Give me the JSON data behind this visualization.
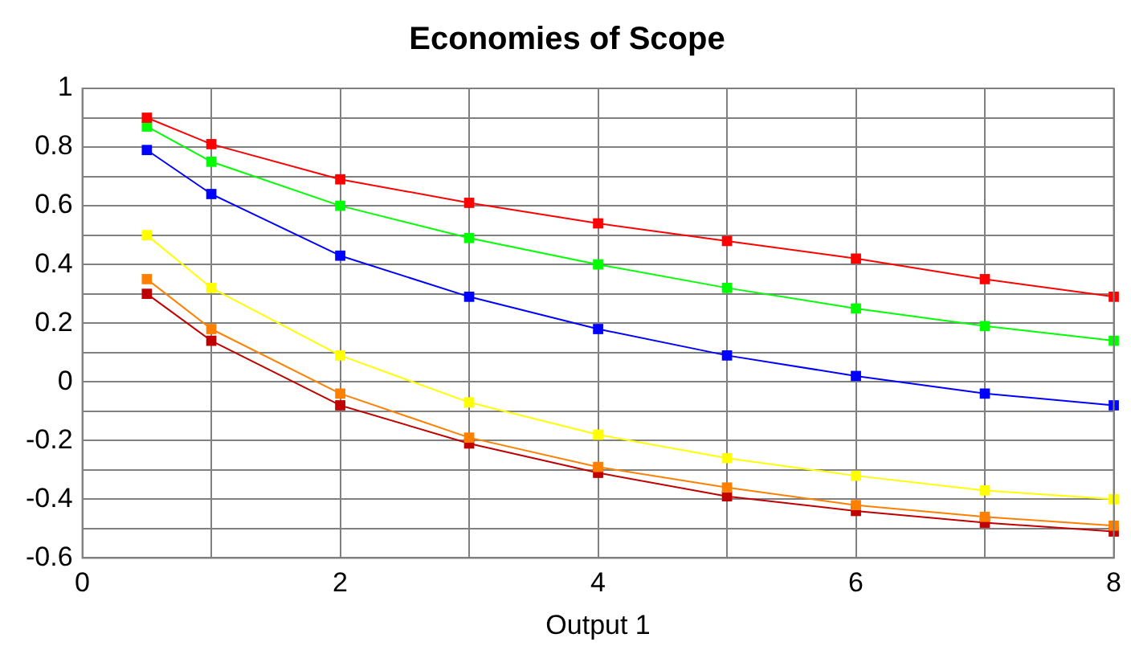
{
  "chart_data": {
    "type": "line",
    "title": "Economies of Scope",
    "xlabel": "Output 1",
    "x": [
      0.5,
      1,
      2,
      3,
      4,
      5,
      6,
      7,
      8
    ],
    "series": [
      {
        "color": "#ff0000",
        "values": [
          0.9,
          0.81,
          0.69,
          0.61,
          0.54,
          0.48,
          0.42,
          0.35,
          0.29
        ]
      },
      {
        "color": "#00ff00",
        "values": [
          0.87,
          0.75,
          0.6,
          0.49,
          0.4,
          0.32,
          0.25,
          0.19,
          0.14
        ]
      },
      {
        "color": "#0000ff",
        "values": [
          0.79,
          0.64,
          0.43,
          0.29,
          0.18,
          0.09,
          0.02,
          -0.04,
          -0.08
        ]
      },
      {
        "color": "#ffff00",
        "values": [
          0.5,
          0.32,
          0.09,
          -0.07,
          -0.18,
          -0.26,
          -0.32,
          -0.37,
          -0.4
        ]
      },
      {
        "color": "#ff8000",
        "values": [
          0.35,
          0.18,
          -0.04,
          -0.19,
          -0.29,
          -0.36,
          -0.42,
          -0.46,
          -0.49
        ]
      },
      {
        "color": "#c00000",
        "values": [
          0.3,
          0.14,
          -0.08,
          -0.21,
          -0.31,
          -0.39,
          -0.44,
          -0.48,
          -0.51
        ]
      }
    ],
    "xlim": [
      0,
      8
    ],
    "xticks": [
      0,
      {
        "value": 1,
        "label": null
      },
      2,
      {
        "value": 3,
        "label": null
      },
      4,
      {
        "value": 5,
        "label": null
      },
      6,
      {
        "value": 7,
        "label": null
      },
      8
    ],
    "ylim": [
      -0.6,
      1
    ],
    "yticks": [
      -0.6,
      {
        "value": -0.5,
        "label": null
      },
      -0.4,
      {
        "value": -0.3,
        "label": null
      },
      -0.2,
      {
        "value": -0.1,
        "label": null
      },
      0,
      {
        "value": 0.1,
        "label": null
      },
      0.2,
      {
        "value": 0.3,
        "label": null
      },
      0.4,
      {
        "value": 0.5,
        "label": null
      },
      0.6,
      {
        "value": 0.7,
        "label": null
      },
      0.8,
      {
        "value": 0.9,
        "label": null
      },
      1
    ],
    "grid": true,
    "legend": false,
    "marker": "square",
    "line_style": "solid"
  }
}
